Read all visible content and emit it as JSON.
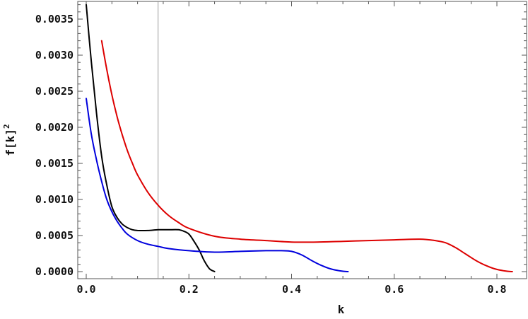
{
  "chart_data": {
    "type": "line",
    "xlabel": "k",
    "ylabel": "f[k]",
    "ylabel_superscript": "2",
    "xlim": [
      0.0,
      0.84
    ],
    "ylim": [
      0.0,
      0.0037
    ],
    "x_ticks": [
      "0.0",
      "0.2",
      "0.4",
      "0.6",
      "0.8"
    ],
    "x_tick_values": [
      0.0,
      0.2,
      0.4,
      0.6,
      0.8
    ],
    "y_ticks": [
      "0.0000",
      "0.0005",
      "0.0010",
      "0.0015",
      "0.0020",
      "0.0025",
      "0.0030",
      "0.0035"
    ],
    "y_tick_values": [
      0.0,
      0.0005,
      0.001,
      0.0015,
      0.002,
      0.0025,
      0.003,
      0.0035
    ],
    "vertical_reference_x": 0.14,
    "grid": false,
    "legend": "none",
    "series": [
      {
        "color": "#000000",
        "x": [
          0.0,
          0.01,
          0.02,
          0.03,
          0.04,
          0.05,
          0.06,
          0.07,
          0.08,
          0.09,
          0.1,
          0.12,
          0.14,
          0.16,
          0.18,
          0.19,
          0.2,
          0.21,
          0.22,
          0.23,
          0.24,
          0.25
        ],
        "y": [
          0.0037,
          0.0029,
          0.0022,
          0.0016,
          0.0012,
          0.0009,
          0.00075,
          0.00066,
          0.00061,
          0.00058,
          0.00057,
          0.00057,
          0.00058,
          0.00058,
          0.00058,
          0.00056,
          0.00052,
          0.00042,
          0.0003,
          0.00015,
          4e-05,
          0.0
        ]
      },
      {
        "color": "#0000dd",
        "x": [
          0.0,
          0.01,
          0.02,
          0.03,
          0.04,
          0.05,
          0.06,
          0.07,
          0.08,
          0.1,
          0.12,
          0.14,
          0.16,
          0.2,
          0.25,
          0.3,
          0.35,
          0.38,
          0.4,
          0.42,
          0.44,
          0.46,
          0.48,
          0.5,
          0.51
        ],
        "y": [
          0.0024,
          0.0019,
          0.00155,
          0.00125,
          0.001,
          0.00083,
          0.0007,
          0.0006,
          0.00052,
          0.00043,
          0.00038,
          0.00035,
          0.00032,
          0.00029,
          0.00027,
          0.00028,
          0.00029,
          0.00029,
          0.00028,
          0.00023,
          0.00015,
          8e-05,
          3e-05,
          5e-06,
          0.0
        ]
      },
      {
        "color": "#dd0000",
        "x": [
          0.03,
          0.04,
          0.05,
          0.06,
          0.07,
          0.08,
          0.09,
          0.1,
          0.12,
          0.14,
          0.16,
          0.18,
          0.2,
          0.25,
          0.3,
          0.35,
          0.4,
          0.45,
          0.5,
          0.55,
          0.6,
          0.65,
          0.68,
          0.7,
          0.72,
          0.74,
          0.76,
          0.78,
          0.8,
          0.82,
          0.83
        ],
        "y": [
          0.0032,
          0.0028,
          0.00245,
          0.00215,
          0.0019,
          0.00168,
          0.0015,
          0.00134,
          0.0011,
          0.00092,
          0.00078,
          0.00068,
          0.0006,
          0.00049,
          0.00045,
          0.00043,
          0.00041,
          0.00041,
          0.00042,
          0.00043,
          0.00044,
          0.00045,
          0.00043,
          0.0004,
          0.00033,
          0.00024,
          0.00015,
          8e-05,
          3e-05,
          5e-06,
          0.0
        ]
      }
    ]
  }
}
